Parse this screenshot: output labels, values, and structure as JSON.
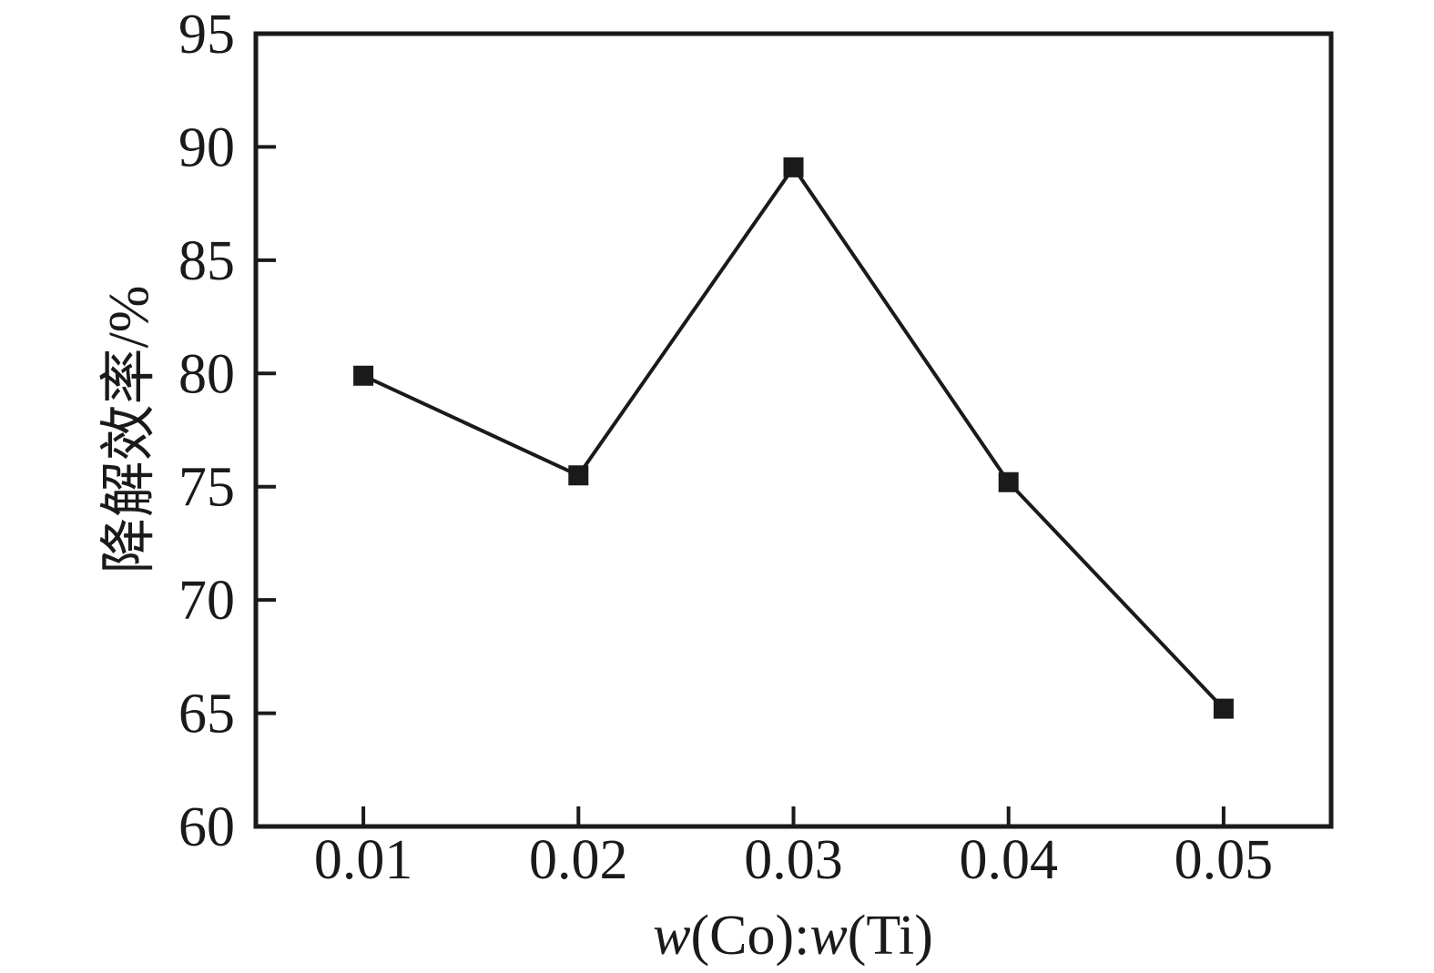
{
  "chart_data": {
    "type": "line",
    "title": "",
    "xlabel": "w(Co):w(Ti)",
    "xlabel_parts": [
      {
        "text": "w",
        "italic": true
      },
      {
        "text": "(Co):",
        "italic": false
      },
      {
        "text": "w",
        "italic": true
      },
      {
        "text": "(Ti)",
        "italic": false
      }
    ],
    "ylabel": "降解效率/%",
    "series": [
      {
        "name": "degradation-efficiency",
        "x": [
          0.01,
          0.02,
          0.03,
          0.04,
          0.05
        ],
        "y": [
          79.9,
          75.5,
          89.1,
          75.2,
          65.2
        ]
      }
    ],
    "xticks": [
      "0.01",
      "0.02",
      "0.03",
      "0.04",
      "0.05"
    ],
    "xtick_values": [
      0.01,
      0.02,
      0.03,
      0.04,
      0.05
    ],
    "yticks": [
      "95",
      "90",
      "85",
      "80",
      "75",
      "70",
      "65",
      "60"
    ],
    "ytick_values": [
      95,
      90,
      85,
      80,
      75,
      70,
      65,
      60
    ],
    "xlim": [
      0.005,
      0.055
    ],
    "ylim": [
      60,
      95
    ],
    "grid": false,
    "legend": "none",
    "marker": "filled-square",
    "line_color": "#1a1a1a",
    "marker_color": "#1a1a1a",
    "axis_color": "#1a1a1a",
    "background_color": "#ffffff"
  }
}
